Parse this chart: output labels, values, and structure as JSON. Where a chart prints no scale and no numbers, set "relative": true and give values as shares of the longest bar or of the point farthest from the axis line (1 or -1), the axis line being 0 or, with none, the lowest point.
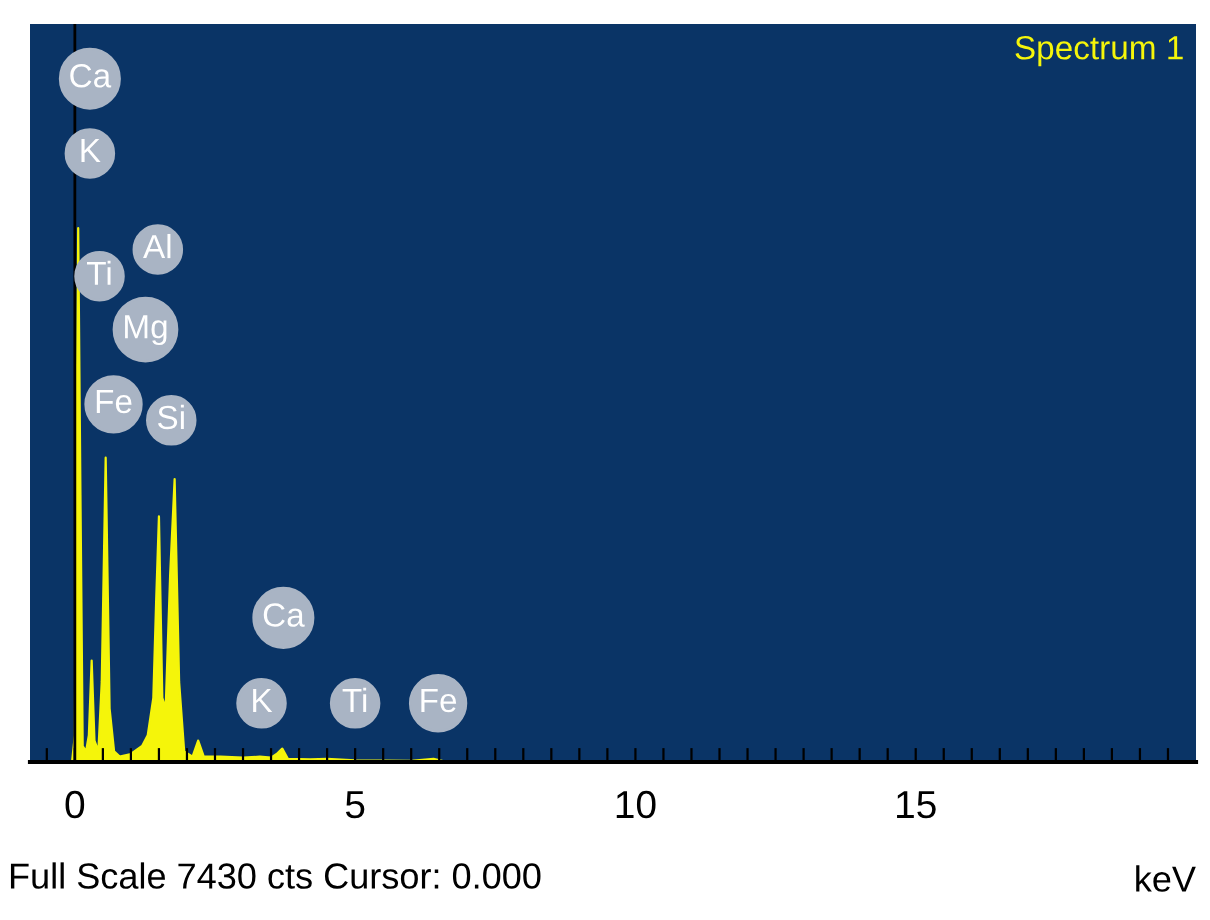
{
  "chart_data": {
    "type": "area",
    "title": "Spectrum 1",
    "xlabel": "keV",
    "relative": true,
    "x": [
      -0.8,
      -0.05,
      0.0,
      0.03,
      0.06,
      0.1,
      0.14,
      0.2,
      0.25,
      0.3,
      0.35,
      0.42,
      0.48,
      0.55,
      0.62,
      0.7,
      0.8,
      1.0,
      1.2,
      1.3,
      1.4,
      1.45,
      1.5,
      1.56,
      1.62,
      1.7,
      1.78,
      1.86,
      1.95,
      2.1,
      2.2,
      2.3,
      2.6,
      3.0,
      3.3,
      3.5,
      3.6,
      3.7,
      3.8,
      4.2,
      4.5,
      5.0,
      6.0,
      6.4,
      6.6,
      20.0
    ],
    "series": [
      {
        "color": "#f5f50a",
        "values": [
          0,
          0,
          0.05,
          0.6,
          1.0,
          0.5,
          0.03,
          0.02,
          0.05,
          0.19,
          0.04,
          0.02,
          0.15,
          0.57,
          0.1,
          0.02,
          0.01,
          0.015,
          0.03,
          0.05,
          0.12,
          0.3,
          0.46,
          0.12,
          0.1,
          0.35,
          0.53,
          0.15,
          0.02,
          0.01,
          0.04,
          0.01,
          0.01,
          0.008,
          0.01,
          0.008,
          0.015,
          0.025,
          0.006,
          0.005,
          0.006,
          0.003,
          0.002,
          0.006,
          0.001,
          0
        ]
      }
    ],
    "annotations": [
      "Ca",
      "K",
      {
        "text": "Ti",
        "x": 0.44,
        "y": 0.91
      },
      {
        "text": "Al",
        "x": 1.48,
        "y": 0.96
      },
      {
        "text": "Mg",
        "x": 1.26,
        "y": 0.81
      },
      {
        "text": "Fe",
        "x": 0.69,
        "y": 0.67
      },
      {
        "text": "Si",
        "x": 1.72,
        "y": 0.64
      },
      {
        "text": "Ca",
        "x": 3.72,
        "y": 0.27
      },
      {
        "text": "K",
        "x": 3.33,
        "y": 0.11
      },
      {
        "text": "Ti",
        "x": 5.0,
        "y": 0.11
      },
      {
        "text": "Fe",
        "x": 6.48,
        "y": 0.11
      },
      "Full Scale 7430 cts Cursor: 0.000"
    ],
    "ref_lines": [
      {
        "axis": "x",
        "value": 0,
        "color": "#000000"
      }
    ],
    "xlim": [
      -0.8,
      20.0
    ],
    "xticks": [
      {
        "value": -0.5,
        "label": null
      },
      0,
      {
        "value": 0.5,
        "label": null
      },
      {
        "value": 1,
        "label": null
      },
      {
        "value": 1.5,
        "label": null
      },
      {
        "value": 2,
        "label": null
      },
      {
        "value": 2.5,
        "label": null
      },
      {
        "value": 3,
        "label": null
      },
      {
        "value": 3.5,
        "label": null
      },
      {
        "value": 4,
        "label": null
      },
      {
        "value": 4.5,
        "label": null
      },
      5,
      {
        "value": 5.5,
        "label": null
      },
      {
        "value": 6,
        "label": null
      },
      {
        "value": 6.5,
        "label": null
      },
      {
        "value": 7,
        "label": null
      },
      {
        "value": 7.5,
        "label": null
      },
      {
        "value": 8,
        "label": null
      },
      {
        "value": 8.5,
        "label": null
      },
      {
        "value": 9,
        "label": null
      },
      {
        "value": 9.5,
        "label": null
      },
      10,
      {
        "value": 10.5,
        "label": null
      },
      {
        "value": 11,
        "label": null
      },
      {
        "value": 11.5,
        "label": null
      },
      {
        "value": 12,
        "label": null
      },
      {
        "value": 12.5,
        "label": null
      },
      {
        "value": 13,
        "label": null
      },
      {
        "value": 13.5,
        "label": null
      },
      {
        "value": 14,
        "label": null
      },
      {
        "value": 14.5,
        "label": null
      },
      15,
      {
        "value": 15.5,
        "label": null
      },
      {
        "value": 16,
        "label": null
      },
      {
        "value": 16.5,
        "label": null
      },
      {
        "value": 17,
        "label": null
      },
      {
        "value": 17.5,
        "label": null
      },
      {
        "value": 18,
        "label": null
      },
      {
        "value": 18.5,
        "label": null
      },
      {
        "value": 19,
        "label": null
      },
      {
        "value": 19.5,
        "label": null
      }
    ],
    "grid": false
  }
}
